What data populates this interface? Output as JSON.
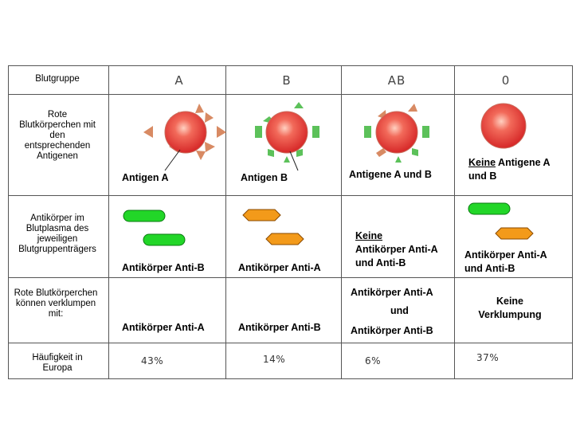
{
  "table": {
    "columns": [
      "A",
      "B",
      "AB",
      "0"
    ],
    "rows": {
      "blutgruppe": {
        "label": "Blutgruppe"
      },
      "rote_koerperchen": {
        "label": "Rote Blutkörperchen mit den entsprechenden Antigenen",
        "cells": [
          "Antigen A",
          "Antigen B",
          "Antigene A und B",
          "Keine Antigene A und B"
        ],
        "cell_d_underlined": "Keine",
        "cell_d_rest": " Antigene A und B"
      },
      "antikoerper": {
        "label": "Antikörper im Blutplasma des jeweiligen Blutgruppenträgers",
        "cells": [
          "Antikörper Anti-B",
          "Antikörper Anti-A",
          "Keine Antikörper Anti-A und Anti-B",
          "Antikörper Anti-A und Anti-B"
        ],
        "cell_c_underlined": "Keine",
        "cell_c_rest": "Antikörper Anti-A und Anti-B"
      },
      "verklumpen": {
        "label": "Rote Blutkörperchen können verklumpen mit:",
        "cells": [
          "Antikörper Anti-A",
          "Antikörper Anti-B",
          "Antikörper Anti-A und Antikörper Anti-B",
          "Keine Verklumpung"
        ],
        "cell_c_parts": [
          "Antikörper Anti-A",
          "und",
          "Antikörper Anti-B"
        ]
      },
      "haeufigkeit": {
        "label": "Häufigkeit in Europa",
        "cells": [
          "43%",
          "14%",
          "6%",
          "37%"
        ]
      }
    }
  },
  "colors": {
    "cell_red": "#e8393a",
    "antigen_a": "#d88a63",
    "antigen_b": "#5cc15a",
    "antibody_anti_a": "#f39a1a",
    "antibody_anti_b": "#22d628"
  }
}
